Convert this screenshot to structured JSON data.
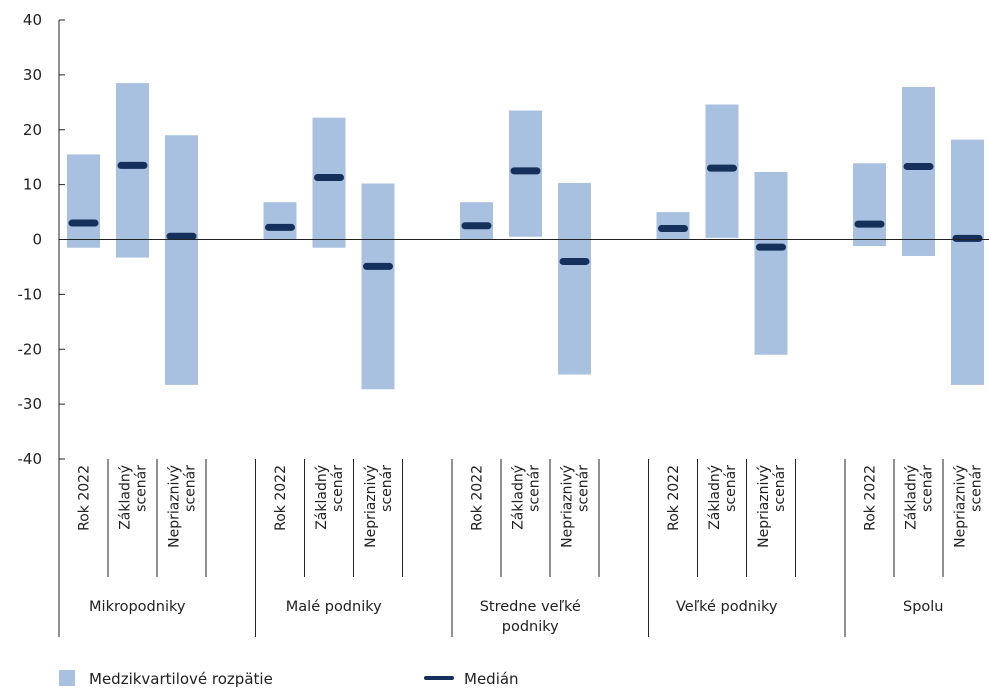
{
  "chart_data": {
    "type": "range-bar",
    "ylim": [
      -40,
      40
    ],
    "yticks": [
      "40",
      "30",
      "20",
      "10",
      "0",
      "-10",
      "-20",
      "-30",
      "-40"
    ],
    "yticks_values": [
      40,
      30,
      20,
      10,
      0,
      -10,
      -20,
      -30,
      -40
    ],
    "subcategories": [
      "Rok 2022",
      "Základný scenár",
      "Nepriaznivý scenár"
    ],
    "subcategory_lines": [
      [
        "Rok 2022"
      ],
      [
        "Základný",
        "scenár"
      ],
      [
        "Nepriaznivý",
        "scenár"
      ]
    ],
    "groups": [
      {
        "label_lines": [
          "Mikropodniky"
        ],
        "bars": [
          {
            "low": -1.5,
            "high": 15.5,
            "median": 3.0
          },
          {
            "low": -3.3,
            "high": 28.5,
            "median": 13.5
          },
          {
            "low": -26.5,
            "high": 19.0,
            "median": 0.6
          }
        ]
      },
      {
        "label_lines": [
          "Malé podniky"
        ],
        "bars": [
          {
            "low": 0.0,
            "high": 6.8,
            "median": 2.2
          },
          {
            "low": -1.5,
            "high": 22.2,
            "median": 11.3
          },
          {
            "low": -27.3,
            "high": 10.2,
            "median": -4.9
          }
        ]
      },
      {
        "label_lines": [
          "Stredne veľké",
          "podniky"
        ],
        "bars": [
          {
            "low": 0.0,
            "high": 6.8,
            "median": 2.5
          },
          {
            "low": 0.5,
            "high": 23.5,
            "median": 12.5
          },
          {
            "low": -24.6,
            "high": 10.3,
            "median": -4.0
          }
        ]
      },
      {
        "label_lines": [
          "Veľké podniky"
        ],
        "bars": [
          {
            "low": 0.0,
            "high": 5.0,
            "median": 2.0
          },
          {
            "low": 0.3,
            "high": 24.6,
            "median": 13.0
          },
          {
            "low": -21.0,
            "high": 12.3,
            "median": -1.4
          }
        ]
      },
      {
        "label_lines": [
          "Spolu"
        ],
        "bars": [
          {
            "low": -1.2,
            "high": 13.9,
            "median": 2.8
          },
          {
            "low": -3.0,
            "high": 27.8,
            "median": 13.3
          },
          {
            "low": -26.5,
            "high": 18.2,
            "median": 0.2
          }
        ]
      }
    ],
    "legend": [
      {
        "name": "Medzikvartilové rozpätie",
        "type": "box"
      },
      {
        "name": "Medián",
        "type": "line"
      }
    ],
    "legend_position": "bottom"
  },
  "colors": {
    "range": "#a8c1e0",
    "median": "#15305a",
    "axis": "#222222"
  }
}
